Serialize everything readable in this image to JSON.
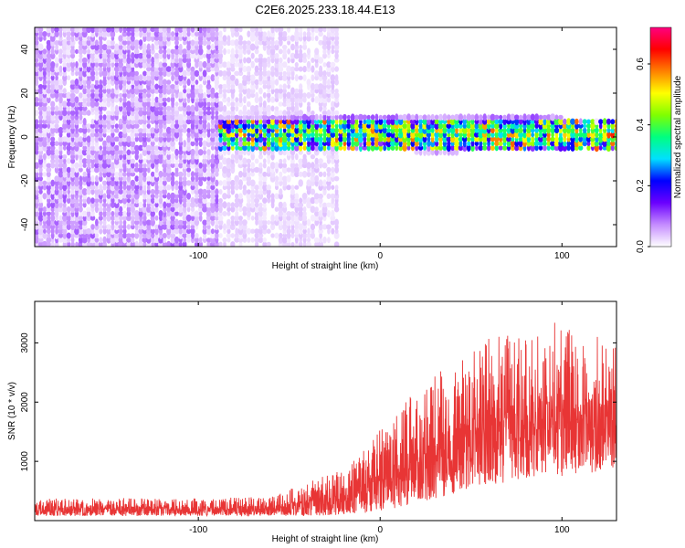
{
  "title": "C2E6.2025.233.18.44.E13",
  "colors": {
    "snr_line": "#e83535",
    "axis": "#000000",
    "background": "#ffffff"
  },
  "chart_data": [
    {
      "type": "heatmap",
      "xlabel": "Height of straight line (km)",
      "ylabel": "Frequency (Hz)",
      "xlim": [
        -190,
        130
      ],
      "ylim": [
        -50,
        50
      ],
      "xticks": [
        -100,
        0,
        100
      ],
      "xtick_labels": [
        "-100",
        "0",
        "100"
      ],
      "yticks": [
        -40,
        -20,
        0,
        20,
        40
      ],
      "ytick_labels": [
        "-40",
        "-20",
        "0",
        "20",
        "40"
      ],
      "colorbar": {
        "label": "Normalized spectral amplitude",
        "range": [
          0.0,
          0.72
        ],
        "ticks": [
          0.0,
          0.2,
          0.4,
          0.6
        ],
        "tick_labels": [
          "0.0",
          "0.2",
          "0.4",
          "0.6"
        ],
        "colormap": [
          "#ffffff",
          "#c58cff",
          "#6a00ff",
          "#0000ff",
          "#00e0ff",
          "#00ff80",
          "#80ff00",
          "#ffff00",
          "#ff8000",
          "#ff0000",
          "#ff0080"
        ]
      },
      "regions": [
        {
          "x_range": [
            -190,
            -90
          ],
          "freq_range": [
            -50,
            50
          ],
          "amplitude": 0.05
        },
        {
          "x_range": [
            -90,
            -25
          ],
          "freq_range": [
            -50,
            50
          ],
          "amplitude": 0.02
        },
        {
          "x_range": [
            -90,
            130
          ],
          "freq_range": [
            -7,
            7
          ],
          "amplitude": 0.3
        }
      ],
      "band": {
        "x": [
          -90,
          -60,
          -30,
          0,
          30,
          60,
          90,
          115,
          130
        ],
        "center_hz": [
          3,
          2,
          1,
          1,
          0,
          1,
          1,
          0,
          0
        ],
        "halfwidth_hz": [
          4,
          5,
          6,
          6,
          6,
          6,
          6,
          4,
          3
        ],
        "peak_amplitude": [
          0.22,
          0.3,
          0.35,
          0.38,
          0.36,
          0.35,
          0.4,
          0.52,
          0.6
        ]
      }
    },
    {
      "type": "line",
      "xlabel": "Height of straight line (km)",
      "ylabel": "SNR (10 * v/v)",
      "xlim": [
        -190,
        130
      ],
      "ylim": [
        0,
        3700
      ],
      "xticks": [
        -100,
        0,
        100
      ],
      "xtick_labels": [
        "-100",
        "0",
        "100"
      ],
      "yticks": [
        1000,
        2000,
        3000
      ],
      "ytick_labels": [
        "1000",
        "2000",
        "3000"
      ],
      "envelope": {
        "x": [
          -190,
          -140,
          -100,
          -60,
          -40,
          -20,
          0,
          20,
          40,
          60,
          80,
          100,
          120,
          130
        ],
        "upper": [
          380,
          380,
          380,
          400,
          650,
          900,
          1550,
          2200,
          2700,
          3100,
          3250,
          3400,
          3100,
          3000
        ],
        "lower": [
          80,
          80,
          80,
          80,
          80,
          100,
          150,
          300,
          450,
          600,
          700,
          750,
          800,
          900
        ]
      }
    }
  ]
}
